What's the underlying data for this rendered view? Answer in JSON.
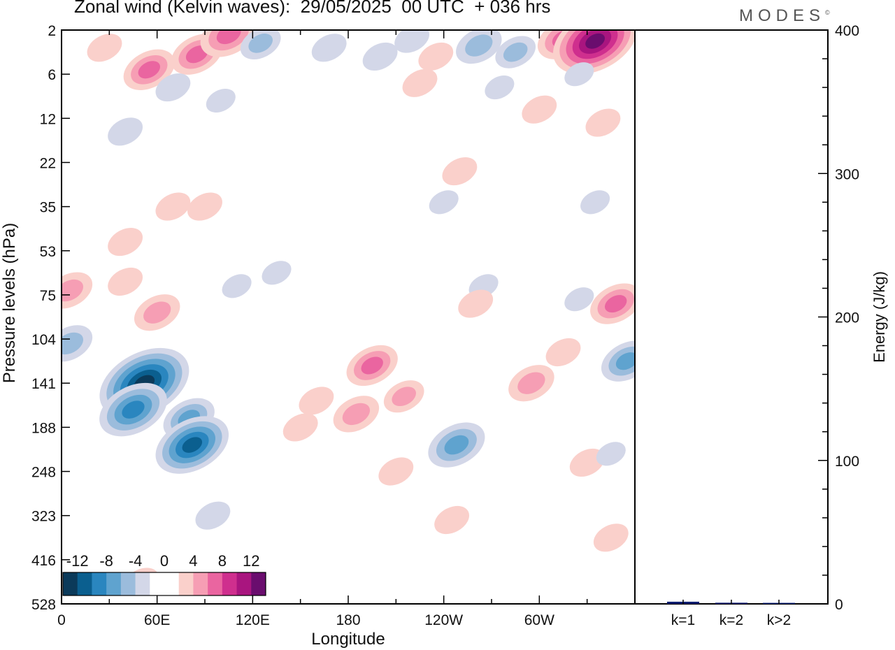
{
  "header": {
    "title": "Zonal wind (Kelvin waves):  29/05/2025  00 UTC  + 036 hrs",
    "logo": "MODES"
  },
  "chart_data": [
    {
      "type": "heatmap",
      "title": "Zonal wind (Kelvin waves):  29/05/2025  00 UTC  + 036 hrs",
      "xlabel": "Longitude",
      "ylabel": "Pressure levels (hPa)",
      "x_ticks": [
        "0",
        "60E",
        "120E",
        "180",
        "120W",
        "60W"
      ],
      "y_ticks": [
        "2",
        "6",
        "12",
        "22",
        "35",
        "53",
        "75",
        "104",
        "141",
        "188",
        "248",
        "323",
        "416",
        "528"
      ],
      "colorbar": {
        "tick_labels": [
          "-12",
          "-8",
          "-4",
          "0",
          "4",
          "8",
          "12"
        ],
        "levels": [
          -14,
          -12,
          -10,
          -8,
          -6,
          -4,
          -2,
          0,
          2,
          4,
          6,
          8,
          10,
          12,
          14
        ],
        "colors": [
          "#0b3a5a",
          "#0b5f8f",
          "#2a86bf",
          "#5fa3cf",
          "#9bbcdc",
          "#d3d7e8",
          "#ffffff",
          "#ffffff",
          "#fad0cb",
          "#f69eb4",
          "#ea65a0",
          "#cf2f8e",
          "#a9157f",
          "#6a0d6e"
        ]
      },
      "features": [
        {
          "lon": 27,
          "lev": 0.4,
          "value": 3
        },
        {
          "lon": 55,
          "lev": 0.9,
          "value": 6
        },
        {
          "lon": 85,
          "lev": 0.55,
          "value": 6
        },
        {
          "lon": 105,
          "lev": 0.1,
          "value": 7
        },
        {
          "lon": 70,
          "lev": 1.3,
          "value": -3
        },
        {
          "lon": 100,
          "lev": 1.6,
          "value": -2
        },
        {
          "lon": 40,
          "lev": 2.3,
          "value": -3
        },
        {
          "lon": 125,
          "lev": 0.3,
          "value": -4
        },
        {
          "lon": 168,
          "lev": 0.4,
          "value": -3
        },
        {
          "lon": 200,
          "lev": 0.6,
          "value": -3
        },
        {
          "lon": 220,
          "lev": 0.2,
          "value": -3
        },
        {
          "lon": 235,
          "lev": 0.6,
          "value": 3
        },
        {
          "lon": 262,
          "lev": 0.35,
          "value": -5
        },
        {
          "lon": 275,
          "lev": 1.3,
          "value": -2
        },
        {
          "lon": 285,
          "lev": 0.5,
          "value": -4
        },
        {
          "lon": 315,
          "lev": 0.2,
          "value": 6
        },
        {
          "lon": 335,
          "lev": 0.25,
          "value": 12
        },
        {
          "lon": 325,
          "lev": 1.0,
          "value": -2
        },
        {
          "lon": 300,
          "lev": 1.8,
          "value": 3
        },
        {
          "lon": 340,
          "lev": 2.1,
          "value": 3
        },
        {
          "lon": 225,
          "lev": 1.2,
          "value": 3
        },
        {
          "lon": 250,
          "lev": 3.2,
          "value": 3
        },
        {
          "lon": 240,
          "lev": 3.9,
          "value": -2
        },
        {
          "lon": 335,
          "lev": 3.9,
          "value": -2
        },
        {
          "lon": 70,
          "lev": 4.0,
          "value": 3
        },
        {
          "lon": 90,
          "lev": 4.0,
          "value": 3
        },
        {
          "lon": 40,
          "lev": 4.8,
          "value": 3
        },
        {
          "lon": 5,
          "lev": 5.9,
          "value": 5
        },
        {
          "lon": 40,
          "lev": 5.7,
          "value": 3
        },
        {
          "lon": 60,
          "lev": 6.4,
          "value": 5
        },
        {
          "lon": 110,
          "lev": 5.8,
          "value": -2
        },
        {
          "lon": 135,
          "lev": 5.5,
          "value": -2
        },
        {
          "lon": 265,
          "lev": 5.8,
          "value": -2
        },
        {
          "lon": 260,
          "lev": 6.2,
          "value": 3
        },
        {
          "lon": 325,
          "lev": 6.1,
          "value": -2
        },
        {
          "lon": 348,
          "lev": 6.2,
          "value": 6
        },
        {
          "lon": 5,
          "lev": 7.1,
          "value": -5
        },
        {
          "lon": 52,
          "lev": 8.0,
          "value": -13
        },
        {
          "lon": 45,
          "lev": 8.6,
          "value": -9
        },
        {
          "lon": 80,
          "lev": 8.8,
          "value": -6
        },
        {
          "lon": 82,
          "lev": 9.4,
          "value": -10
        },
        {
          "lon": 95,
          "lev": 11.0,
          "value": -3
        },
        {
          "lon": 150,
          "lev": 9.0,
          "value": 3
        },
        {
          "lon": 160,
          "lev": 8.4,
          "value": 3
        },
        {
          "lon": 185,
          "lev": 8.7,
          "value": 5
        },
        {
          "lon": 195,
          "lev": 7.6,
          "value": 6
        },
        {
          "lon": 215,
          "lev": 8.3,
          "value": 4
        },
        {
          "lon": 210,
          "lev": 10.0,
          "value": 3
        },
        {
          "lon": 248,
          "lev": 9.4,
          "value": -7
        },
        {
          "lon": 295,
          "lev": 8.0,
          "value": 5
        },
        {
          "lon": 315,
          "lev": 7.3,
          "value": 3
        },
        {
          "lon": 355,
          "lev": 7.5,
          "value": -6
        },
        {
          "lon": 330,
          "lev": 9.8,
          "value": 3
        },
        {
          "lon": 345,
          "lev": 9.6,
          "value": -2
        },
        {
          "lon": 245,
          "lev": 11.1,
          "value": 3
        },
        {
          "lon": 345,
          "lev": 11.5,
          "value": 3
        },
        {
          "lon": 50,
          "lev": 12.5,
          "value": 3
        }
      ]
    },
    {
      "type": "bar",
      "categories": [
        "k=1",
        "k=2",
        "k>2"
      ],
      "values": [
        1.5,
        0.8,
        0.7
      ],
      "ylabel": "Energy (J/kg)",
      "ylim": [
        0,
        400
      ],
      "y_ticks": [
        "0",
        "100",
        "200",
        "300",
        "400"
      ],
      "bar_color": "#0a1c6e"
    }
  ]
}
